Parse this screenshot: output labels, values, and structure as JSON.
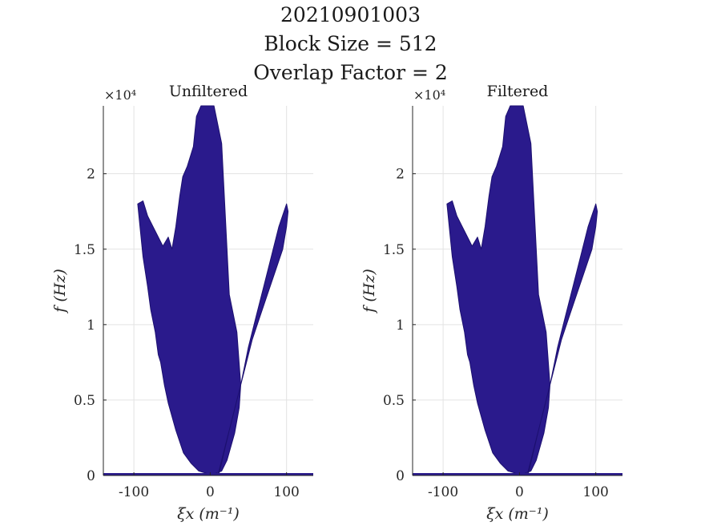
{
  "figure": {
    "title_lines": [
      "20210901003",
      "Block Size = 512",
      "Overlap Factor = 2"
    ]
  },
  "chart_data": [
    {
      "type": "area",
      "title": "Unfiltered",
      "xlabel": "ξx (m⁻¹)",
      "ylabel": "f (Hz)",
      "y_exponent": "×10⁴",
      "xlim": [
        -140,
        135
      ],
      "ylim": [
        0,
        24500
      ],
      "x_ticks": [
        -100,
        0,
        100
      ],
      "x_tick_labels": [
        "-100",
        "0",
        "100"
      ],
      "y_ticks": [
        0,
        5000,
        10000,
        15000,
        20000
      ],
      "y_tick_labels": [
        "0",
        "0.5",
        "1",
        "1.5",
        "2"
      ],
      "grid": true,
      "color": "#2a1a8c",
      "series": [
        {
          "x": [
            -95,
            -88,
            -82,
            -75,
            -62,
            -55,
            -50,
            -45,
            -40,
            -36,
            -30,
            -22,
            -18,
            -12,
            -5,
            5,
            15,
            25,
            35,
            40,
            38,
            32,
            22,
            15,
            5,
            0,
            -5,
            -15,
            -25,
            -35,
            -45,
            -55,
            -60,
            -65,
            -68,
            -72,
            -78,
            -82,
            -88,
            -92
          ],
          "y": [
            18000,
            18200,
            17200,
            16500,
            15200,
            15800,
            15000,
            16500,
            18500,
            19800,
            20500,
            21800,
            23800,
            24500,
            24500,
            24500,
            22000,
            12000,
            9500,
            6000,
            4500,
            2800,
            1000,
            300,
            100,
            100,
            150,
            300,
            800,
            1500,
            3000,
            4800,
            6000,
            7500,
            8000,
            9500,
            11000,
            12500,
            14500,
            16500
          ]
        },
        {
          "x": [
            10,
            20,
            30,
            40,
            50,
            60,
            70,
            80,
            90,
            100,
            102,
            100,
            95,
            85,
            75,
            65,
            55,
            45,
            35,
            25,
            18,
            12
          ],
          "y": [
            0,
            2000,
            4000,
            6000,
            8500,
            10500,
            12500,
            14500,
            16500,
            18000,
            17500,
            16500,
            15000,
            13500,
            12000,
            10500,
            9000,
            7000,
            5000,
            3000,
            1500,
            200
          ]
        }
      ]
    },
    {
      "type": "area",
      "title": "Filtered",
      "xlabel": "ξx (m⁻¹)",
      "ylabel": "f (Hz)",
      "y_exponent": "×10⁴",
      "xlim": [
        -140,
        135
      ],
      "ylim": [
        0,
        24500
      ],
      "x_ticks": [
        -100,
        0,
        100
      ],
      "x_tick_labels": [
        "-100",
        "0",
        "100"
      ],
      "y_ticks": [
        0,
        5000,
        10000,
        15000,
        20000
      ],
      "y_tick_labels": [
        "0",
        "0.5",
        "1",
        "1.5",
        "2"
      ],
      "grid": true,
      "color": "#2a1a8c",
      "series": [
        {
          "x": [
            -95,
            -88,
            -82,
            -75,
            -62,
            -55,
            -50,
            -45,
            -40,
            -36,
            -30,
            -22,
            -18,
            -12,
            -5,
            5,
            15,
            25,
            35,
            40,
            38,
            32,
            22,
            15,
            5,
            0,
            -5,
            -15,
            -25,
            -35,
            -45,
            -55,
            -60,
            -65,
            -68,
            -72,
            -78,
            -82,
            -88,
            -92
          ],
          "y": [
            18000,
            18200,
            17200,
            16500,
            15200,
            15800,
            15000,
            16500,
            18500,
            19800,
            20500,
            21800,
            23800,
            24500,
            24500,
            24500,
            22000,
            12000,
            9500,
            6000,
            4500,
            2800,
            1000,
            300,
            100,
            100,
            150,
            300,
            800,
            1500,
            3000,
            4800,
            6000,
            7500,
            8000,
            9500,
            11000,
            12500,
            14500,
            16500
          ]
        },
        {
          "x": [
            10,
            20,
            30,
            40,
            50,
            60,
            70,
            80,
            90,
            100,
            102,
            100,
            95,
            85,
            75,
            65,
            55,
            45,
            35,
            25,
            18,
            12
          ],
          "y": [
            0,
            2000,
            4000,
            6000,
            8500,
            10500,
            12500,
            14500,
            16500,
            18000,
            17500,
            16500,
            15000,
            13500,
            12000,
            10500,
            9000,
            7000,
            5000,
            3000,
            1500,
            200
          ]
        }
      ]
    }
  ]
}
